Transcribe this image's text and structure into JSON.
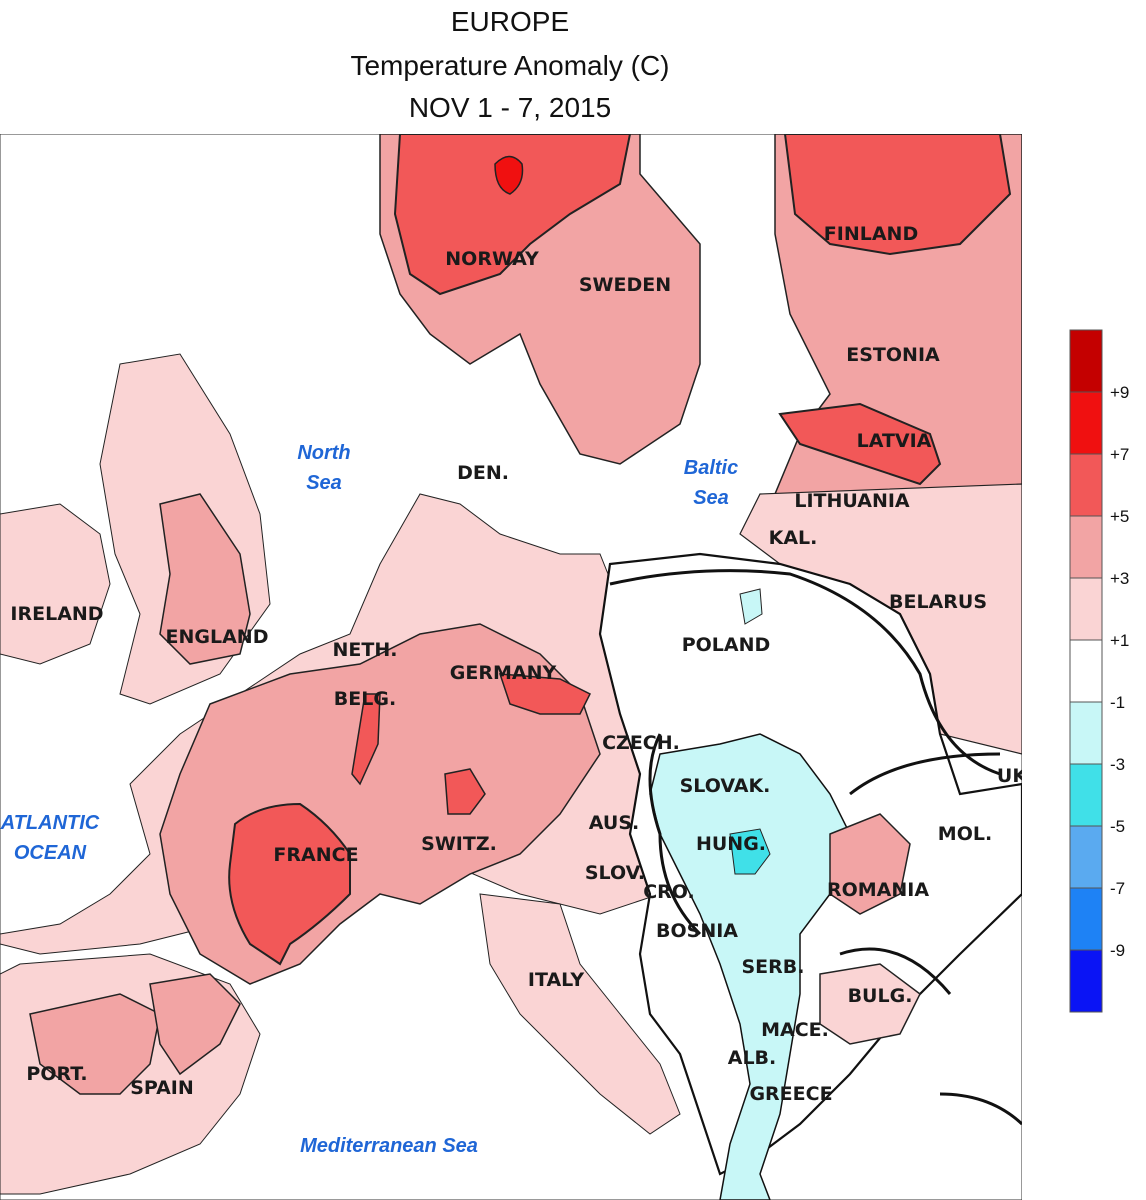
{
  "title": {
    "line1": "EUROPE",
    "line2": "Temperature Anomaly (C)",
    "line3": "NOV 1 - 7, 2015"
  },
  "countries": {
    "norway": "NORWAY",
    "sweden": "SWEDEN",
    "finland": "FINLAND",
    "estonia": "ESTONIA",
    "latvia": "LATVIA",
    "lithuania": "LITHUANIA",
    "kal": "KAL.",
    "belarus": "BELARUS",
    "den": "DEN.",
    "ireland": "IRELAND",
    "england": "ENGLAND",
    "neth": "NETH.",
    "belg": "BELG.",
    "germany": "GERMANY",
    "poland": "POLAND",
    "czech": "CZECH.",
    "slovak": "SLOVAK.",
    "uk_short": "UK",
    "aus": "AUS.",
    "hung": "HUNG.",
    "mol": "MOL.",
    "switz": "SWITZ.",
    "france": "FRANCE",
    "slov": "SLOV.",
    "cro": "CRO.",
    "romania": "ROMANIA",
    "bosnia": "BOSNIA",
    "serb": "SERB.",
    "italy": "ITALY",
    "bulg": "BULG.",
    "mace": "MACE.",
    "alb": "ALB.",
    "greece": "GREECE",
    "port": "PORT.",
    "spain": "SPAIN"
  },
  "seas": {
    "north_l1": "North",
    "north_l2": "Sea",
    "baltic_l1": "Baltic",
    "baltic_l2": "Sea",
    "atlantic_l1": "ATLANTIC",
    "atlantic_l2": "OCEAN",
    "med": "Mediterranean Sea"
  },
  "legend": {
    "bins": [
      {
        "color": "#c40000"
      },
      {
        "color": "#f01010"
      },
      {
        "color": "#f25858"
      },
      {
        "color": "#f2a4a4"
      },
      {
        "color": "#fad4d4"
      },
      {
        "color": "#ffffff"
      },
      {
        "color": "#c8f7f7"
      },
      {
        "color": "#40e0e8"
      },
      {
        "color": "#5aaaf0"
      },
      {
        "color": "#1e82f5"
      },
      {
        "color": "#0a14f5"
      }
    ],
    "labels": [
      "+9",
      "+7",
      "+5",
      "+3",
      "+1",
      "-1",
      "-3",
      "-5",
      "-7",
      "-9"
    ]
  },
  "colors": {
    "anom_1_3": "#fad4d4",
    "anom_3_5": "#f2a4a4",
    "anom_5_7": "#f25858",
    "anom_7_9": "#f01010",
    "anom_neutral": "#ffffff",
    "anom_m1_m3": "#c8f7f7",
    "anom_m3_m5": "#40e0e8",
    "sea_label": "#1f66d6"
  }
}
